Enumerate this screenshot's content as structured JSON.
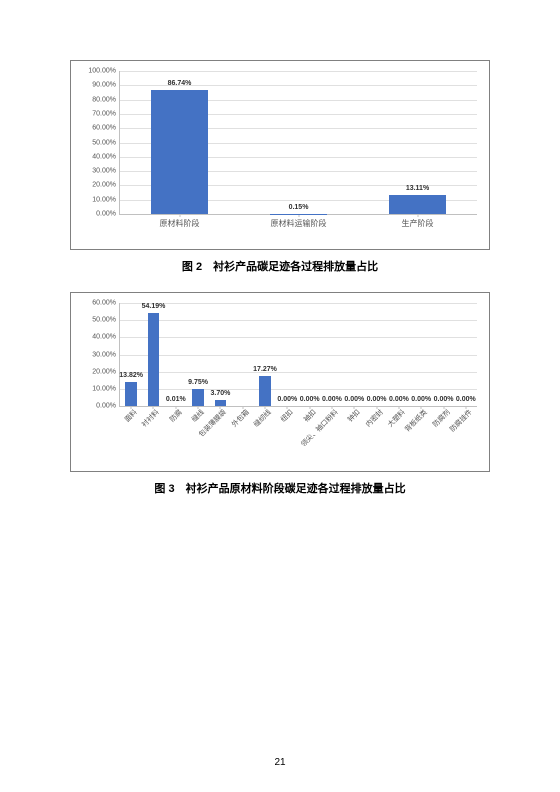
{
  "chart1": {
    "type": "bar",
    "ylim": [
      0,
      100
    ],
    "ytick_step": 10,
    "ytick_suffix": ".00%",
    "bar_color": "#4472c4",
    "grid_color": "#e0e0e0",
    "axis_color": "#c0c0c0",
    "background_color": "#ffffff",
    "value_fontsize": 7,
    "axis_fontsize": 7,
    "categories": [
      "原材料阶段",
      "原材料运输阶段",
      "生产阶段"
    ],
    "values": [
      86.74,
      0.15,
      13.11
    ],
    "value_labels": [
      "86.74%",
      "0.15%",
      "13.11%"
    ],
    "bar_width_pct": 16
  },
  "caption1": "图 2　衬衫产品碳足迹各过程排放量占比",
  "chart2": {
    "type": "bar",
    "ylim": [
      0,
      60
    ],
    "ytick_step": 10,
    "ytick_suffix": ".00%",
    "bar_color": "#4472c4",
    "grid_color": "#e0e0e0",
    "axis_color": "#c0c0c0",
    "background_color": "#ffffff",
    "value_fontsize": 7,
    "axis_fontsize": 7,
    "categories": [
      "面料",
      "衬衬料",
      "防腐",
      "缝线",
      "包装薄膜袋",
      "外包箱",
      "缝纫线",
      "纽扣",
      "袖扣",
      "领尖、袖口粉料",
      "钟扣",
      "内密封",
      "大塑料",
      "背板纸类",
      "防腐剂",
      "防腐挂件"
    ],
    "values": [
      13.82,
      54.19,
      0.01,
      9.75,
      3.7,
      0,
      17.27,
      0,
      0,
      0,
      0,
      0,
      0,
      0,
      0,
      0
    ],
    "value_labels": [
      "13.82%",
      "54.19%",
      "0.01%",
      "9.75%",
      "3.70%",
      "",
      "17.27%",
      "0.00%",
      "0.00%",
      "0.00%",
      "0.00%",
      "0.00%",
      "0.00%",
      "0.00%",
      "0.00%",
      "0.00%"
    ],
    "bar_width_pct": 3.2
  },
  "caption2": "图 3　衬衫产品原材料阶段碳足迹各过程排放量占比",
  "page_number": "21"
}
